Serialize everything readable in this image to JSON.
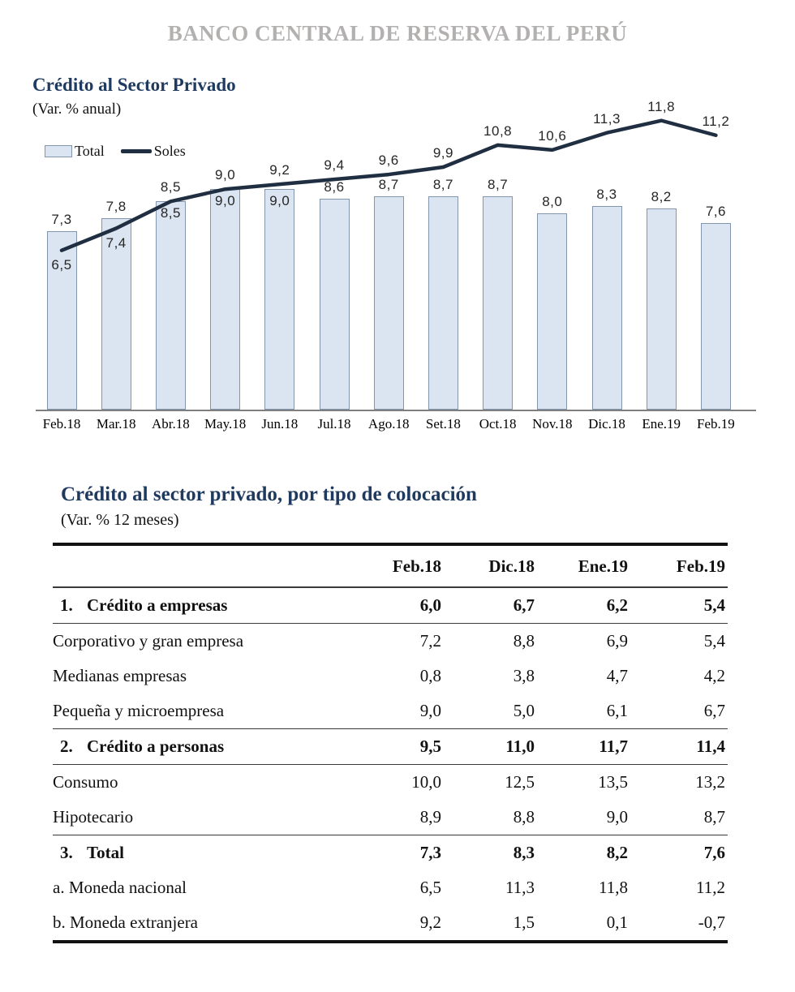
{
  "header": {
    "bank_title": "BANCO CENTRAL DE RESERVA DEL PERÚ"
  },
  "colors": {
    "bar_fill": "#dbe5f1",
    "bar_border": "#8496ad",
    "line": "#202e42",
    "axis": "#7f7f7f",
    "title": "#1f3a5f",
    "bank_title": "#b3b0b0"
  },
  "chart": {
    "title": "Crédito al Sector Privado",
    "subtitle": "(Var. % anual)",
    "legend_total": "Total",
    "legend_soles": "Soles"
  },
  "chart_data": {
    "type": "bar+line",
    "title": "Crédito al Sector Privado",
    "subtitle": "(Var. % anual)",
    "categories": [
      "Feb.18",
      "Mar.18",
      "Abr.18",
      "May.18",
      "Jun.18",
      "Jul.18",
      "Ago.18",
      "Set.18",
      "Oct.18",
      "Nov.18",
      "Dic.18",
      "Ene.19",
      "Feb.19"
    ],
    "ylim": [
      0,
      12.5
    ],
    "grid": false,
    "legend_position": "top-left",
    "series": [
      {
        "name": "Total",
        "type": "bar",
        "values": [
          7.3,
          7.8,
          8.5,
          9.0,
          9.0,
          8.6,
          8.7,
          8.7,
          8.7,
          8.0,
          8.3,
          8.2,
          7.6
        ],
        "labels": [
          "7,3",
          "7,8",
          "8,5",
          "9,0",
          "9,0",
          "8,6",
          "8,7",
          "8,7",
          "8,7",
          "8,0",
          "8,3",
          "8,2",
          "7,6"
        ],
        "label_placement": [
          "above",
          "above",
          "inside",
          "inside",
          "inside",
          "above",
          "above",
          "above",
          "above",
          "above",
          "above",
          "above",
          "above"
        ]
      },
      {
        "name": "Soles",
        "type": "line",
        "values": [
          6.5,
          7.4,
          8.5,
          9.0,
          9.2,
          9.4,
          9.6,
          9.9,
          10.8,
          10.6,
          11.3,
          11.8,
          11.2
        ],
        "labels": [
          "6,5",
          "7,4",
          "8,5",
          "9,0",
          "9,2",
          "9,4",
          "9,6",
          "9,9",
          "10,8",
          "10,6",
          "11,3",
          "11,8",
          "11,2"
        ],
        "label_placement": [
          "below",
          "below",
          "above",
          "above",
          "above",
          "above",
          "above",
          "above",
          "above",
          "above",
          "above",
          "above",
          "above"
        ]
      }
    ]
  },
  "table": {
    "title": "Crédito al sector privado, por tipo de colocación",
    "subtitle": "(Var. % 12 meses)",
    "columns": [
      "Feb.18",
      "Dic.18",
      "Ene.19",
      "Feb.19"
    ],
    "rows": [
      {
        "num": "1.",
        "label": "Crédito a empresas",
        "bold": true,
        "indent": 0,
        "rule_below": true,
        "values": [
          "6,0",
          "6,7",
          "6,2",
          "5,4"
        ]
      },
      {
        "num": "",
        "label": "Corporativo y gran empresa",
        "bold": false,
        "indent": 1,
        "rule_below": false,
        "values": [
          "7,2",
          "8,8",
          "6,9",
          "5,4"
        ]
      },
      {
        "num": "",
        "label": "Medianas empresas",
        "bold": false,
        "indent": 1,
        "rule_below": false,
        "values": [
          "0,8",
          "3,8",
          "4,7",
          "4,2"
        ]
      },
      {
        "num": "",
        "label": "Pequeña y microempresa",
        "bold": false,
        "indent": 1,
        "rule_below": true,
        "values": [
          "9,0",
          "5,0",
          "6,1",
          "6,7"
        ]
      },
      {
        "num": "2.",
        "label": "Crédito a personas",
        "bold": true,
        "indent": 0,
        "rule_below": true,
        "values": [
          "9,5",
          "11,0",
          "11,7",
          "11,4"
        ]
      },
      {
        "num": "",
        "label": "Consumo",
        "bold": false,
        "indent": 1,
        "rule_below": false,
        "values": [
          "10,0",
          "12,5",
          "13,5",
          "13,2"
        ]
      },
      {
        "num": "",
        "label": "Hipotecario",
        "bold": false,
        "indent": 1,
        "rule_below": true,
        "values": [
          "8,9",
          "8,8",
          "9,0",
          "8,7"
        ]
      },
      {
        "num": "3.",
        "label": "Total",
        "bold": true,
        "indent": 0,
        "rule_below": false,
        "values": [
          "7,3",
          "8,3",
          "8,2",
          "7,6"
        ]
      },
      {
        "num": "",
        "label": "a. Moneda nacional",
        "bold": false,
        "indent": 2,
        "rule_below": false,
        "values": [
          "6,5",
          "11,3",
          "11,8",
          "11,2"
        ]
      },
      {
        "num": "",
        "label": "b. Moneda extranjera",
        "bold": false,
        "indent": 2,
        "rule_below": false,
        "values": [
          "9,2",
          "1,5",
          "0,1",
          "-0,7"
        ]
      }
    ]
  }
}
